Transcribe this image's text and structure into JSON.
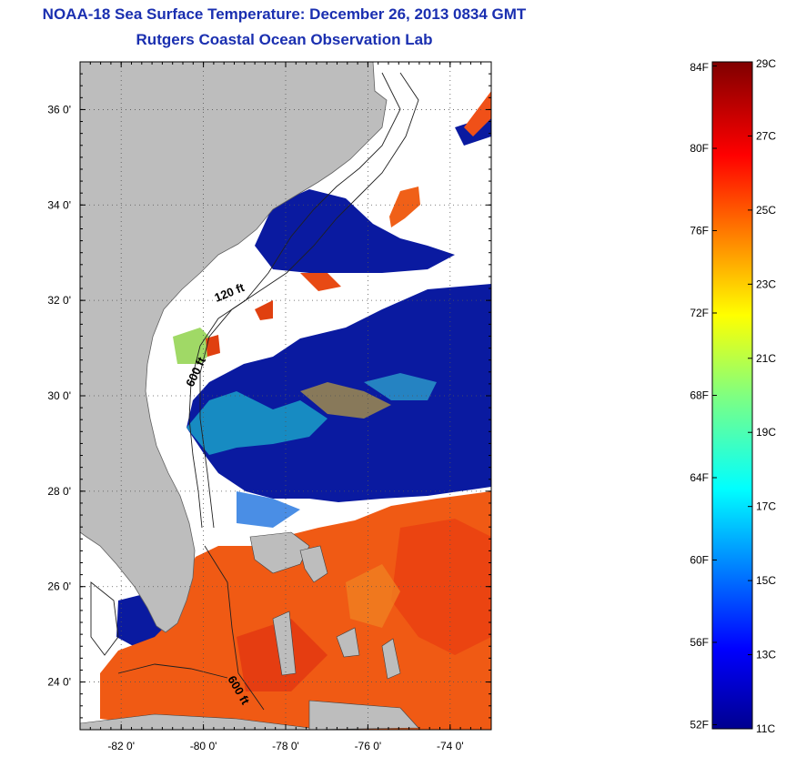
{
  "header": {
    "title": "NOAA-18 Sea Surface Temperature:  December 26, 2013 0834 GMT",
    "subtitle": "Rutgers Coastal Ocean Observation Lab"
  },
  "map": {
    "lon_labels": [
      "-82 0'",
      "-80 0'",
      "-78 0'",
      "-76 0'",
      "-74 0'"
    ],
    "lat_labels": [
      "36 0'",
      "34 0'",
      "32 0'",
      "30 0'",
      "28 0'",
      "26 0'",
      "24 0'"
    ],
    "lon_values": [
      -82,
      -80,
      -78,
      -76,
      -74
    ],
    "lat_values": [
      36,
      34,
      32,
      30,
      28,
      26,
      24
    ],
    "lon_range": [
      -83,
      -73
    ],
    "lat_range": [
      23,
      37
    ],
    "contour_labels": [
      "120 ft",
      "600 ft",
      "600 ft"
    ],
    "colors": {
      "land": "#bdbdbd",
      "cold": "#0a1aa0",
      "warm": "#f05a14",
      "cloud": "#ffffff"
    }
  },
  "colorbar": {
    "fahrenheit_labels": [
      "84F",
      "80F",
      "76F",
      "72F",
      "68F",
      "64F",
      "60F",
      "56F",
      "52F"
    ],
    "celsius_labels": [
      "29C",
      "27C",
      "25C",
      "23C",
      "21C",
      "19C",
      "17C",
      "15C",
      "13C",
      "11C"
    ],
    "fahrenheit_values": [
      84,
      80,
      76,
      72,
      68,
      64,
      60,
      56,
      52
    ],
    "celsius_values": [
      29,
      27,
      25,
      23,
      21,
      19,
      17,
      15,
      13,
      11
    ],
    "range_c": [
      11,
      29
    ]
  }
}
